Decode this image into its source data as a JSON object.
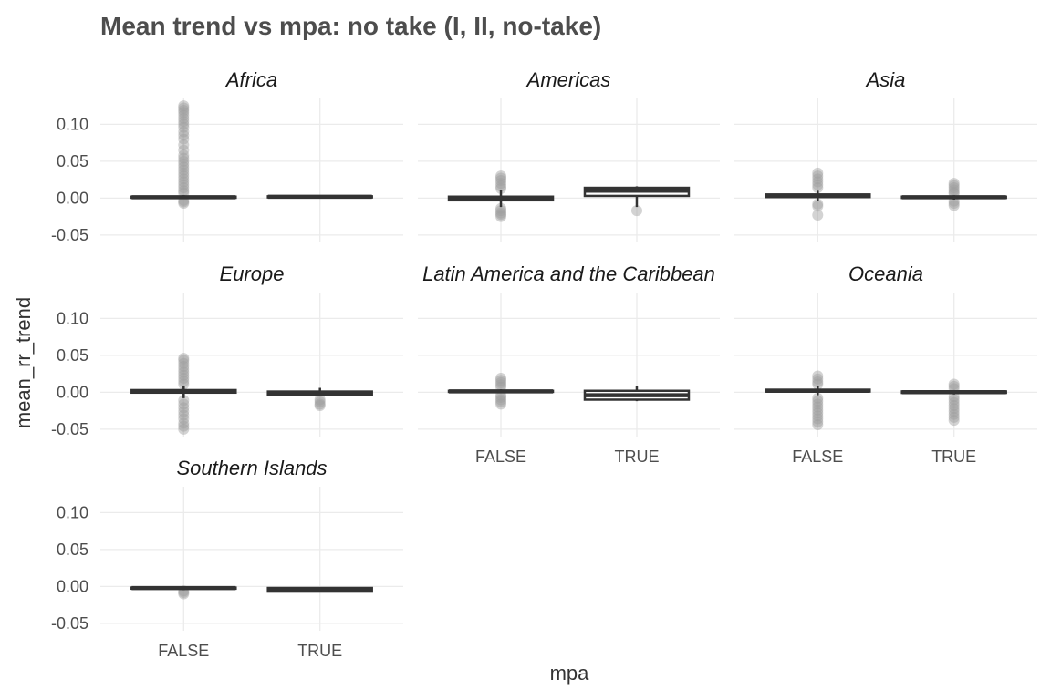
{
  "chart_data": {
    "type": "boxplot",
    "title": "Mean trend vs mpa: no take (I, II, no-take)",
    "xlabel": "mpa",
    "ylabel": "mean_rr_trend",
    "categories": [
      "FALSE",
      "TRUE"
    ],
    "ylim": [
      -0.06,
      0.135
    ],
    "yticks": [
      -0.05,
      0.0,
      0.05,
      0.1
    ],
    "ytick_labels": [
      "-0.05",
      "0.00",
      "0.05",
      "0.10"
    ],
    "grid": true,
    "facets": [
      {
        "name": "Africa",
        "boxes": [
          {
            "category": "FALSE",
            "q1": 0.0005,
            "median": 0.0013,
            "q3": 0.002,
            "whisker_low": -0.001,
            "whisker_high": 0.004,
            "outliers": [
              0.125,
              0.122,
              0.119,
              0.116,
              0.112,
              0.108,
              0.104,
              0.1,
              0.096,
              0.09,
              0.085,
              0.08,
              0.072,
              0.065,
              0.058,
              0.054,
              0.05,
              0.046,
              0.042,
              0.038,
              0.034,
              0.03,
              0.026,
              0.022,
              0.018,
              0.014,
              0.01,
              0.007,
              -0.003,
              -0.005,
              -0.007
            ]
          },
          {
            "category": "TRUE",
            "q1": 0.001,
            "median": 0.0018,
            "q3": 0.0025,
            "whisker_low": 0.0005,
            "whisker_high": 0.003,
            "outliers": []
          }
        ]
      },
      {
        "name": "Americas",
        "boxes": [
          {
            "category": "FALSE",
            "q1": -0.003,
            "median": -0.0005,
            "q3": 0.002,
            "whisker_low": -0.012,
            "whisker_high": 0.011,
            "outliers": [
              0.03,
              0.027,
              0.024,
              0.02,
              0.016,
              0.013,
              -0.014,
              -0.017,
              -0.02,
              -0.022,
              -0.025
            ]
          },
          {
            "category": "TRUE",
            "q1": 0.003,
            "median": 0.01,
            "q3": 0.014,
            "whisker_low": -0.012,
            "whisker_high": 0.016,
            "outliers": [
              -0.017
            ]
          }
        ]
      },
      {
        "name": "Asia",
        "boxes": [
          {
            "category": "FALSE",
            "q1": 0.0015,
            "median": 0.003,
            "q3": 0.005,
            "whisker_low": -0.004,
            "whisker_high": 0.01,
            "outliers": [
              0.034,
              0.03,
              0.026,
              0.022,
              0.018,
              0.014,
              -0.008,
              -0.011,
              -0.023
            ]
          },
          {
            "category": "TRUE",
            "q1": 0.0003,
            "median": 0.0012,
            "q3": 0.002,
            "whisker_low": -0.002,
            "whisker_high": 0.004,
            "outliers": [
              0.02,
              0.017,
              0.014,
              0.011,
              0.008,
              0.006,
              -0.004,
              -0.007,
              -0.01
            ]
          }
        ]
      },
      {
        "name": "Europe",
        "boxes": [
          {
            "category": "FALSE",
            "q1": -0.0005,
            "median": 0.001,
            "q3": 0.003,
            "whisker_low": -0.008,
            "whisker_high": 0.009,
            "outliers": [
              0.046,
              0.043,
              0.039,
              0.035,
              0.031,
              0.027,
              0.023,
              0.019,
              0.015,
              0.011,
              -0.011,
              -0.016,
              -0.021,
              -0.026,
              -0.031,
              -0.036,
              -0.042,
              -0.046,
              -0.05
            ]
          },
          {
            "category": "TRUE",
            "q1": -0.003,
            "median": -0.001,
            "q3": 0.001,
            "whisker_low": -0.005,
            "whisker_high": 0.006,
            "outliers": [
              -0.01,
              -0.013,
              -0.016,
              -0.018
            ]
          }
        ]
      },
      {
        "name": "Latin America and the Caribbean",
        "boxes": [
          {
            "category": "FALSE",
            "q1": 0.0005,
            "median": 0.0012,
            "q3": 0.002,
            "whisker_low": -0.001,
            "whisker_high": 0.004,
            "outliers": [
              0.019,
              0.016,
              0.013,
              0.01,
              0.007,
              -0.004,
              -0.007,
              -0.01,
              -0.013,
              -0.016
            ]
          },
          {
            "category": "TRUE",
            "q1": -0.01,
            "median": -0.004,
            "q3": 0.002,
            "whisker_low": -0.012,
            "whisker_high": 0.008,
            "outliers": []
          }
        ]
      },
      {
        "name": "Oceania",
        "boxes": [
          {
            "category": "FALSE",
            "q1": 0.001,
            "median": 0.002,
            "q3": 0.0035,
            "whisker_low": -0.004,
            "whisker_high": 0.009,
            "outliers": [
              0.022,
              0.018,
              0.014,
              0.011,
              -0.008,
              -0.012,
              -0.016,
              -0.02,
              -0.024,
              -0.028,
              -0.032,
              -0.036,
              -0.04,
              -0.044
            ]
          },
          {
            "category": "TRUE",
            "q1": -0.0008,
            "median": 0.0002,
            "q3": 0.0012,
            "whisker_low": -0.003,
            "whisker_high": 0.003,
            "outliers": [
              0.011,
              0.008,
              0.005,
              -0.006,
              -0.01,
              -0.014,
              -0.018,
              -0.022,
              -0.026,
              -0.03,
              -0.034,
              -0.038
            ]
          }
        ]
      },
      {
        "name": "Southern Islands",
        "boxes": [
          {
            "category": "FALSE",
            "q1": -0.003,
            "median": -0.0022,
            "q3": -0.0015,
            "whisker_low": -0.005,
            "whisker_high": -0.001,
            "outliers": [
              -0.006,
              -0.008,
              -0.01
            ]
          },
          {
            "category": "TRUE",
            "q1": -0.007,
            "median": -0.005,
            "q3": -0.002,
            "whisker_low": -0.008,
            "whisker_high": -0.001,
            "outliers": []
          }
        ]
      }
    ]
  },
  "colors": {
    "box_line": "#333333",
    "box_fill": "#ffffff",
    "outlier": "#9e9e9e",
    "grid": "#ebebeb"
  }
}
